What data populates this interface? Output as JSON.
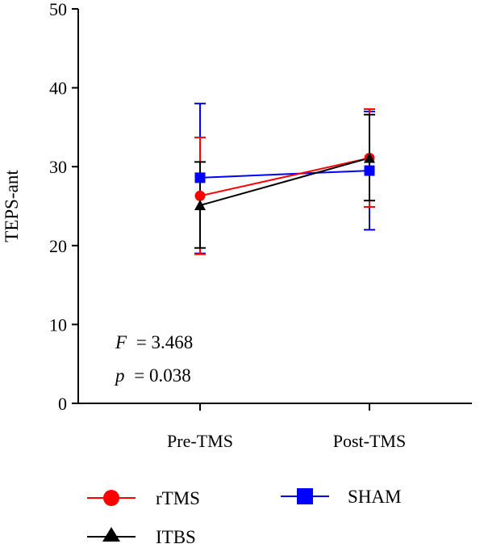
{
  "chart_data": {
    "type": "line",
    "ylabel": "TEPS-ant",
    "xlabel": "",
    "categories": [
      "Pre-TMS",
      "Post-TMS"
    ],
    "ylim": [
      0,
      50
    ],
    "yticks": [
      0,
      10,
      20,
      30,
      40,
      50
    ],
    "grid": false,
    "legend_position": "bottom",
    "series": [
      {
        "name": "rTMS",
        "color": "#ff0000",
        "marker": "circle",
        "values": [
          26.3,
          31.1
        ],
        "err_low": [
          18.9,
          24.9
        ],
        "err_high": [
          33.7,
          37.3
        ]
      },
      {
        "name": "ITBS",
        "color": "#000000",
        "marker": "triangle",
        "values": [
          25.1,
          31.1
        ],
        "err_low": [
          19.7,
          25.7
        ],
        "err_high": [
          30.6,
          36.6
        ]
      },
      {
        "name": "SHAM",
        "color": "#0000ff",
        "marker": "square",
        "values": [
          28.6,
          29.5
        ],
        "err_low": [
          19.0,
          22.0
        ],
        "err_high": [
          38.0,
          37.0
        ]
      }
    ],
    "annotations": {
      "f_label": "F",
      "f_value": "= 3.468",
      "p_label": "p",
      "p_value": "= 0.038"
    }
  }
}
